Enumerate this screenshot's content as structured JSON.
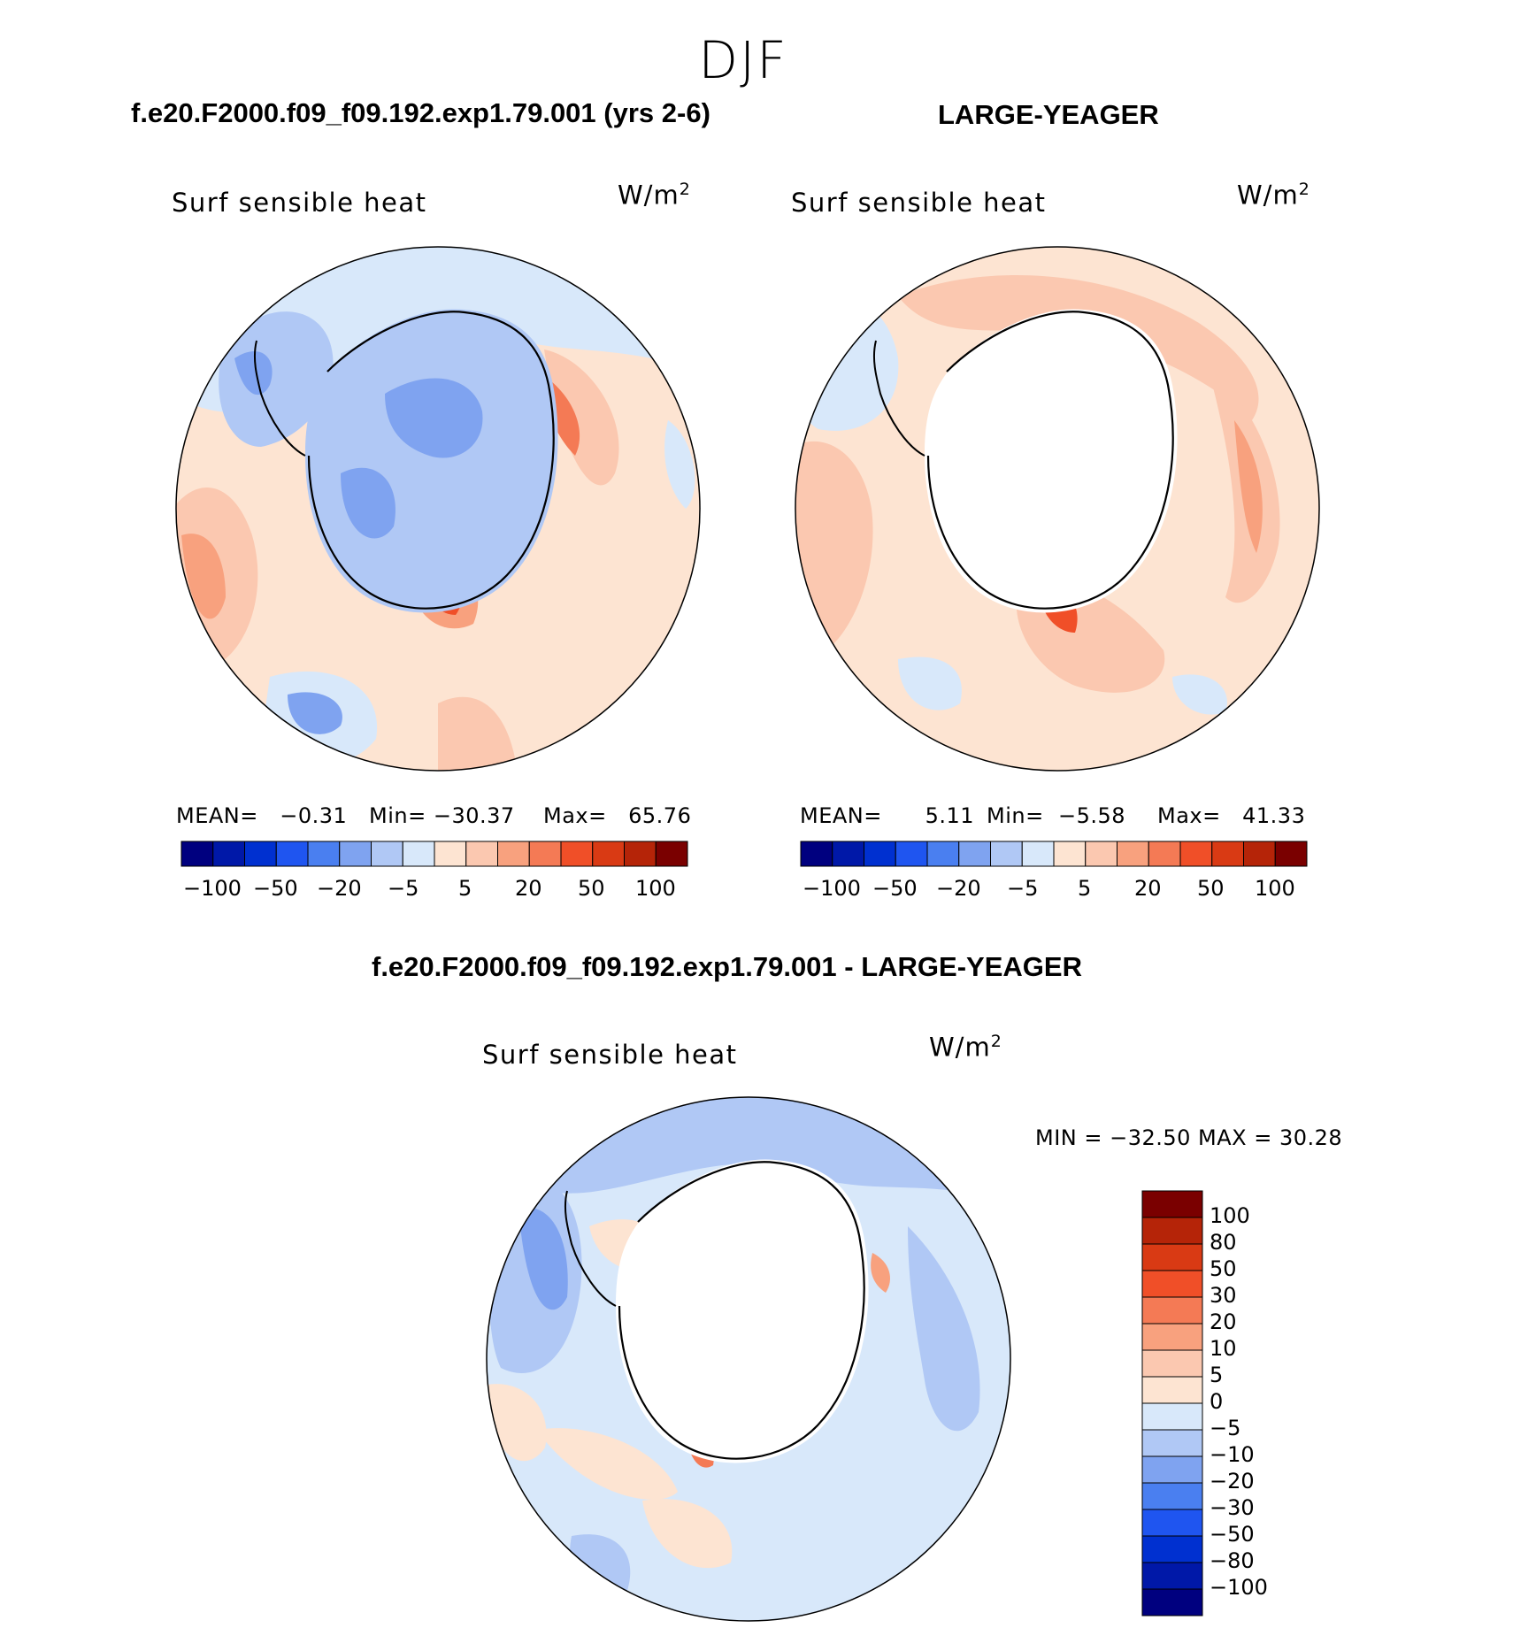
{
  "season": "DJF",
  "units_base": "W/m",
  "units_exp": "2",
  "variable": "Surf sensible heat",
  "panels": [
    {
      "title": "f.e20.F2000.f09_f09.192.exp1.79.001 (yrs 2-6)",
      "mean_label": "MEAN=",
      "mean": "−0.31",
      "min_label": "Min=",
      "min": "−30.37",
      "max_label": "Max=",
      "max": "65.76"
    },
    {
      "title": "LARGE-YEAGER",
      "mean_label": "MEAN=",
      "mean": "5.11",
      "min_label": "Min=",
      "min": "−5.58",
      "max_label": "Max=",
      "max": "41.33"
    }
  ],
  "diff": {
    "title": "f.e20.F2000.f09_f09.192.exp1.79.001 - LARGE-YEAGER",
    "stats": "MIN = −32.50 MAX =   30.28"
  },
  "horizontal_colorbar": {
    "colors": [
      "#00007f",
      "#0018a8",
      "#0030d0",
      "#1f55f0",
      "#4a7ff0",
      "#7fa3f0",
      "#b0c8f5",
      "#d8e8fa",
      "#fde4d2",
      "#fbc8b0",
      "#f8a17e",
      "#f47a55",
      "#f04f28",
      "#d93a14",
      "#b52408",
      "#7a0000"
    ],
    "labels": [
      "−100",
      "−50",
      "−20",
      "−5",
      "5",
      "20",
      "50",
      "100"
    ]
  },
  "vertical_colorbar": {
    "colors_top_to_bottom": [
      "#7a0000",
      "#b52408",
      "#d93a14",
      "#f04f28",
      "#f47a55",
      "#f8a17e",
      "#fbc8b0",
      "#fde4d2",
      "#d8e8fa",
      "#b0c8f5",
      "#7fa3f0",
      "#4a7ff0",
      "#1f55f0",
      "#0030d0",
      "#0018a8",
      "#00007f"
    ],
    "labels": [
      "100",
      "80",
      "50",
      "30",
      "20",
      "10",
      "5",
      "0",
      "−5",
      "−10",
      "−20",
      "−30",
      "−50",
      "−80",
      "−100"
    ]
  }
}
